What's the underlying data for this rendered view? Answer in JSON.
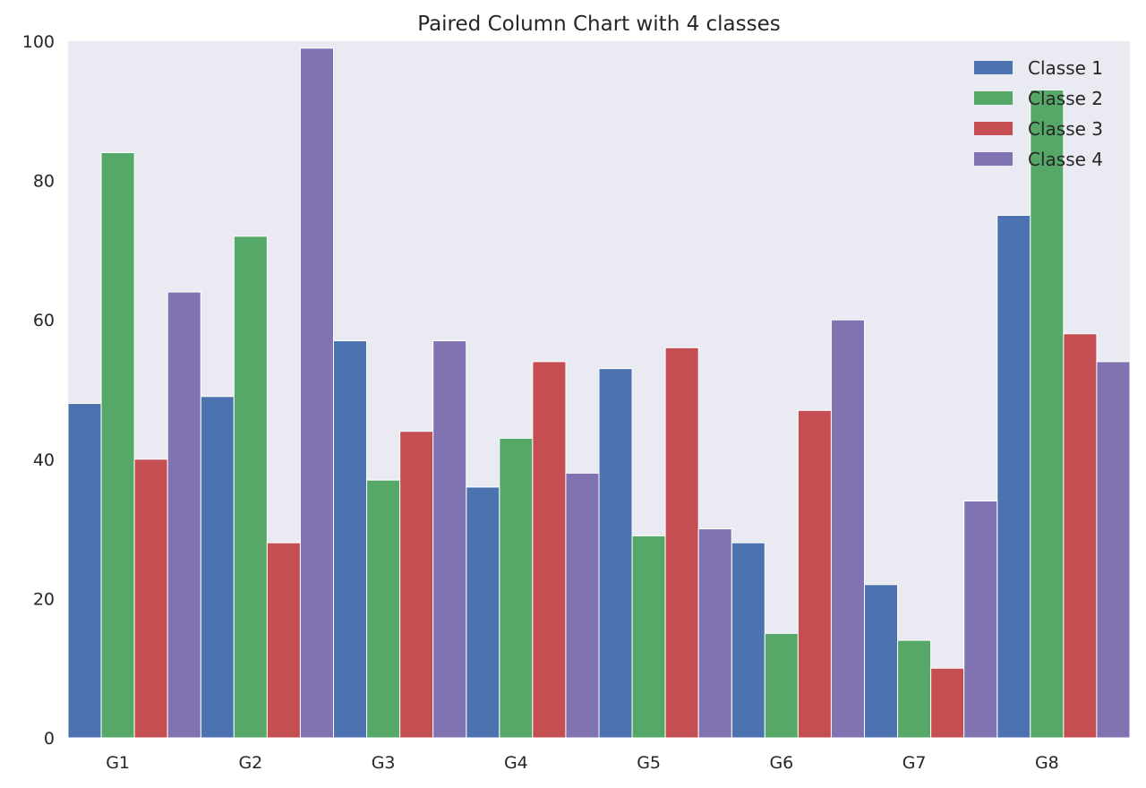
{
  "chart_data": {
    "type": "bar",
    "title": "Paired Column Chart with 4 classes",
    "xlabel": "",
    "ylabel": "",
    "categories": [
      "G1",
      "G2",
      "G3",
      "G4",
      "G5",
      "G6",
      "G7",
      "G8"
    ],
    "series": [
      {
        "name": "Classe 1",
        "color": "#4c72b0",
        "values": [
          48,
          49,
          57,
          36,
          53,
          28,
          22,
          75
        ]
      },
      {
        "name": "Classe 2",
        "color": "#55a868",
        "values": [
          84,
          72,
          37,
          43,
          29,
          15,
          14,
          93
        ]
      },
      {
        "name": "Classe 3",
        "color": "#c44e52",
        "values": [
          40,
          28,
          44,
          54,
          56,
          47,
          10,
          58
        ]
      },
      {
        "name": "Classe 4",
        "color": "#8172b2",
        "values": [
          64,
          99,
          57,
          38,
          30,
          60,
          34,
          54
        ]
      }
    ],
    "ylim": [
      0,
      100
    ],
    "yticks": [
      0,
      20,
      40,
      60,
      80,
      100
    ],
    "grid": false,
    "legend_position": "top-right",
    "plot_background": "#eaeaf2"
  }
}
